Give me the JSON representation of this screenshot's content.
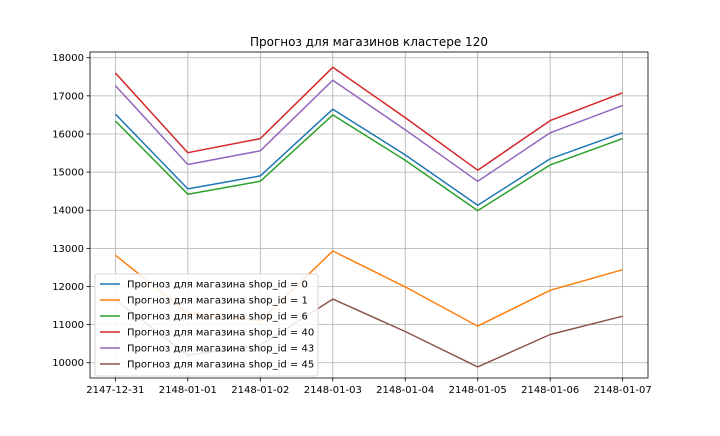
{
  "chart_data": {
    "type": "line",
    "title": "Прогноз для магазинов кластере 120",
    "xlabel": "",
    "ylabel": "",
    "x": [
      "2147-12-31",
      "2148-01-01",
      "2148-01-02",
      "2148-01-03",
      "2148-01-04",
      "2148-01-05",
      "2148-01-06",
      "2148-01-07"
    ],
    "x_positions": [
      0,
      1,
      2,
      3,
      4,
      5,
      6,
      7
    ],
    "ylim": [
      9600,
      18150
    ],
    "yticks": [
      10000,
      11000,
      12000,
      13000,
      14000,
      15000,
      16000,
      17000,
      18000
    ],
    "grid": true,
    "legend_position": "lower-left",
    "series": [
      {
        "name": "Прогноз для магазина shop_id = 0",
        "color": "#1f77b4",
        "values": [
          16520,
          14560,
          14900,
          16650,
          15450,
          14130,
          15350,
          16030
        ]
      },
      {
        "name": "Прогноз для магазина shop_id = 1",
        "color": "#ff7f0e",
        "values": [
          12820,
          11300,
          11100,
          12930,
          11990,
          10960,
          11900,
          12440
        ]
      },
      {
        "name": "Прогноз для магазина shop_id = 6",
        "color": "#2ca02c",
        "values": [
          16340,
          14420,
          14760,
          16500,
          15310,
          13990,
          15190,
          15880
        ]
      },
      {
        "name": "Прогноз для магазина shop_id = 40",
        "color": "#d62728",
        "values": [
          17600,
          15510,
          15880,
          17750,
          16430,
          15050,
          16350,
          17080
        ]
      },
      {
        "name": "Прогноз для магазина shop_id = 43",
        "color": "#9467bd",
        "values": [
          17270,
          15200,
          15560,
          17410,
          16110,
          14760,
          16030,
          16750
        ]
      },
      {
        "name": "Прогноз для магазина shop_id = 45",
        "color": "#8c564b",
        "values": [
          11650,
          10200,
          10460,
          11670,
          10820,
          9890,
          10740,
          11220
        ]
      }
    ]
  }
}
